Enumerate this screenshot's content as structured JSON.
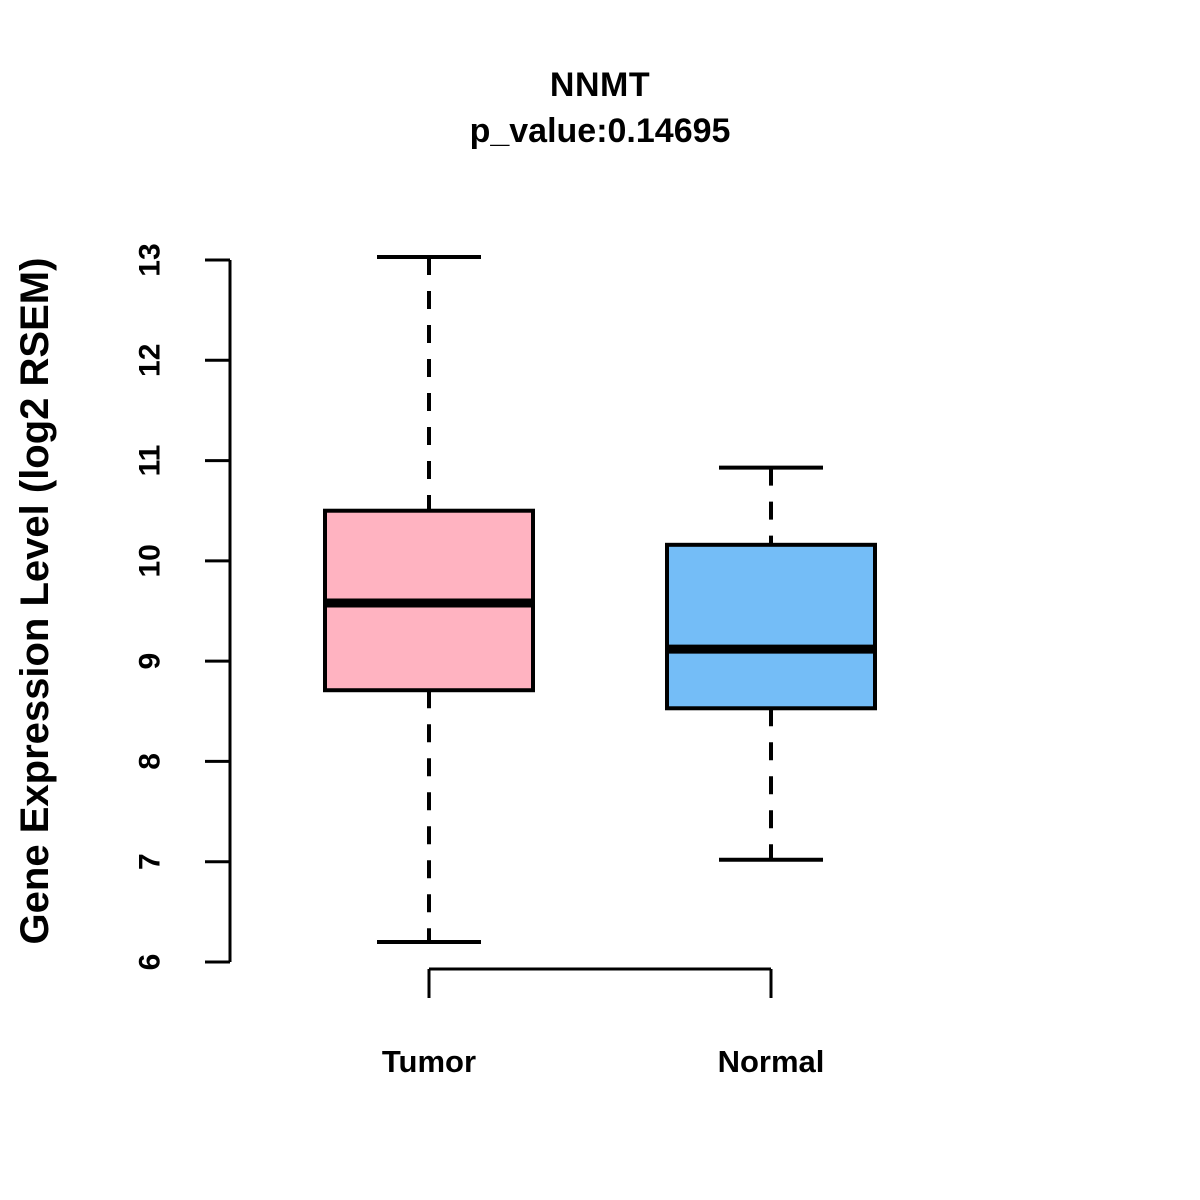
{
  "title": "NNMT",
  "subtitle": "p_value:0.14695",
  "y_axis_label": "Gene Expression Level (log2 RSEM)",
  "chart_data": {
    "type": "boxplot",
    "title": "NNMT",
    "subtitle": "p_value:0.14695",
    "ylabel": "Gene Expression Level (log2 RSEM)",
    "ylim": [
      6,
      13
    ],
    "yticks": [
      6,
      7,
      8,
      9,
      10,
      11,
      12,
      13
    ],
    "grid": false,
    "legend": "none",
    "categories": [
      "Tumor",
      "Normal"
    ],
    "series": [
      {
        "name": "Tumor",
        "color": "#FFB3C1",
        "whisker_low": 6.2,
        "q1": 8.71,
        "median": 9.58,
        "q3": 10.5,
        "whisker_high": 13.03
      },
      {
        "name": "Normal",
        "color": "#74BDF7",
        "whisker_low": 7.02,
        "q1": 8.53,
        "median": 9.12,
        "q3": 10.16,
        "whisker_high": 10.93
      }
    ],
    "colors": {
      "box_border": "#000000",
      "median_line": "#000000",
      "axis": "#000000",
      "background": "#ffffff"
    }
  }
}
